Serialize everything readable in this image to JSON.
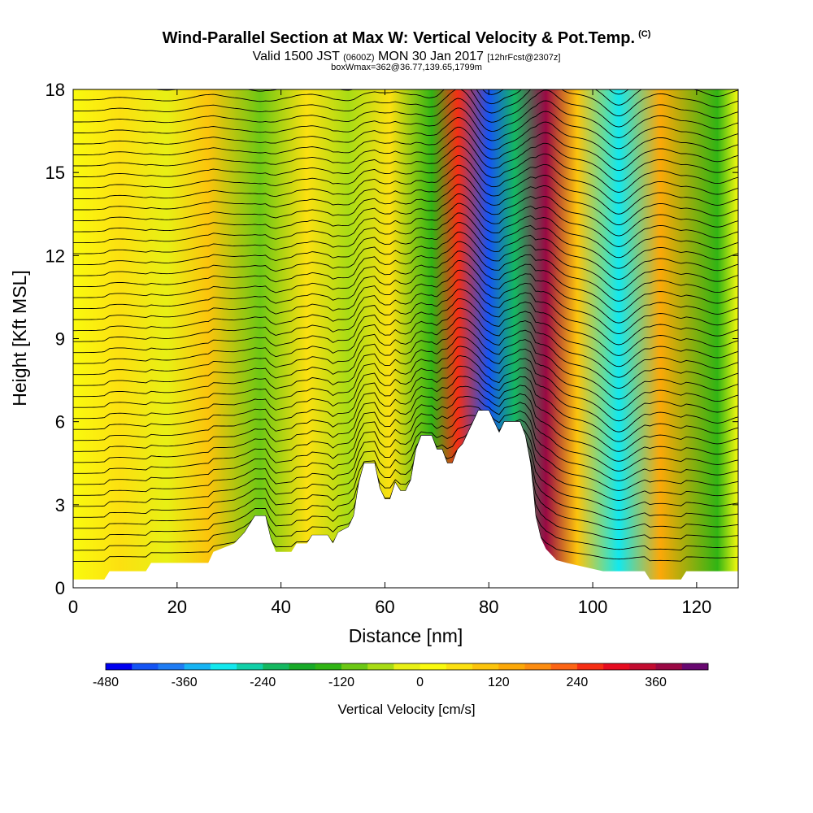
{
  "header": {
    "title": "Wind-Parallel Section at Max W: Vertical Velocity & Pot.Temp.",
    "title_mark": "(C)",
    "valid_prefix": "Valid 1500 JST",
    "valid_z": "(0600Z)",
    "valid_date": "MON 30 Jan 2017",
    "valid_fcst": "[12hrFcst@2307z]",
    "boxwmax": "boxWmax=362@36.77,139.65,1799m"
  },
  "colorbar": {
    "title": "Vertical Velocity [cm/s]",
    "levels": [
      -480,
      -440,
      -400,
      -360,
      -320,
      -280,
      -240,
      -200,
      -160,
      -120,
      -80,
      -40,
      0,
      40,
      80,
      120,
      160,
      200,
      240,
      280,
      320,
      360,
      400
    ],
    "colors": [
      "#0000f0",
      "#1454f4",
      "#1e7cf4",
      "#16b4f4",
      "#12e8ee",
      "#10d0a8",
      "#14b860",
      "#18aa28",
      "#30b414",
      "#6cc814",
      "#a8dc14",
      "#e8f014",
      "#fafa0e",
      "#fce010",
      "#fcc40c",
      "#fca808",
      "#fc8c10",
      "#fc6414",
      "#f62e14",
      "#e60c20",
      "#c20c30",
      "#9a0844",
      "#680870"
    ],
    "tick_labels": [
      "-480",
      "-360",
      "-240",
      "-120",
      "0",
      "120",
      "240",
      "360"
    ]
  },
  "chart_data": {
    "type": "heatmap",
    "title": "Wind-Parallel Section at Max W: Vertical Velocity & Pot.Temp.",
    "xlabel": "Distance [nm]",
    "ylabel": "Height [Kft MSL]",
    "xlim": [
      0,
      128
    ],
    "ylim": [
      0,
      18
    ],
    "x_ticks": [
      0,
      20,
      40,
      60,
      80,
      100,
      120
    ],
    "y_ticks": [
      0,
      3,
      6,
      9,
      12,
      15,
      18
    ],
    "grid": false,
    "field": "Vertical Velocity [cm/s]",
    "contour_field": "Potential Temperature (C)",
    "w_max": 362,
    "vertical_velocity_bands": [
      {
        "x": 9,
        "w": 40
      },
      {
        "x": 18,
        "w": -40
      },
      {
        "x": 26,
        "w": 80
      },
      {
        "x": 36,
        "w": -110
      },
      {
        "x": 45,
        "w": 60
      },
      {
        "x": 53,
        "w": -80
      },
      {
        "x": 61,
        "w": 40
      },
      {
        "x": 69,
        "w": -160
      },
      {
        "x": 74,
        "w": 260
      },
      {
        "x": 80,
        "w": -440
      },
      {
        "x": 85,
        "w": -240
      },
      {
        "x": 91,
        "w": 362
      },
      {
        "x": 97,
        "w": 80
      },
      {
        "x": 105,
        "w": -320
      },
      {
        "x": 113,
        "w": 120
      },
      {
        "x": 124,
        "w": -150
      }
    ],
    "terrain": [
      [
        0,
        0.3
      ],
      [
        6,
        0.3
      ],
      [
        7,
        0.6
      ],
      [
        14,
        0.6
      ],
      [
        15,
        0.9
      ],
      [
        26,
        0.9
      ],
      [
        27,
        1.3
      ],
      [
        31,
        1.6
      ],
      [
        33,
        2.0
      ],
      [
        35,
        2.6
      ],
      [
        37,
        2.6
      ],
      [
        38,
        1.8
      ],
      [
        39,
        1.3
      ],
      [
        42,
        1.3
      ],
      [
        43,
        1.6
      ],
      [
        45,
        1.6
      ],
      [
        46,
        1.9
      ],
      [
        49,
        1.9
      ],
      [
        50,
        1.6
      ],
      [
        51,
        2.0
      ],
      [
        53,
        2.2
      ],
      [
        54,
        2.6
      ],
      [
        55,
        3.8
      ],
      [
        56,
        4.5
      ],
      [
        58,
        4.5
      ],
      [
        59,
        3.6
      ],
      [
        60,
        3.2
      ],
      [
        61,
        3.2
      ],
      [
        62,
        3.8
      ],
      [
        63,
        3.5
      ],
      [
        64,
        3.5
      ],
      [
        65,
        3.9
      ],
      [
        66,
        5.0
      ],
      [
        67,
        5.5
      ],
      [
        69,
        5.5
      ],
      [
        70,
        5.0
      ],
      [
        71,
        5.0
      ],
      [
        72,
        4.5
      ],
      [
        73,
        4.5
      ],
      [
        74,
        5.0
      ],
      [
        75,
        5.2
      ],
      [
        76,
        5.6
      ],
      [
        77,
        6.0
      ],
      [
        78,
        6.4
      ],
      [
        80,
        6.4
      ],
      [
        81,
        6.0
      ],
      [
        82,
        5.6
      ],
      [
        83,
        6.0
      ],
      [
        86,
        6.0
      ],
      [
        87,
        5.5
      ],
      [
        88,
        4.5
      ],
      [
        88.5,
        3.6
      ],
      [
        89,
        2.6
      ],
      [
        90,
        1.8
      ],
      [
        91,
        1.4
      ],
      [
        93,
        1.0
      ],
      [
        95,
        0.9
      ],
      [
        102,
        0.6
      ],
      [
        110,
        0.6
      ],
      [
        111,
        0.3
      ],
      [
        117,
        0.3
      ],
      [
        118,
        0.6
      ],
      [
        128,
        0.6
      ]
    ]
  }
}
